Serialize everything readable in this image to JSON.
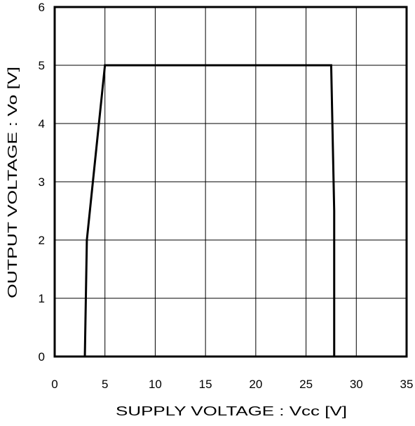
{
  "chart_data": {
    "type": "line",
    "xlabel": "SUPPLY VOLTAGE  : Vcc [V]",
    "ylabel": "OUTPUT VOLTAGE  : Vo [V]",
    "xlim": [
      0,
      35
    ],
    "ylim": [
      0,
      6
    ],
    "x_ticks": [
      "0",
      "5",
      "10",
      "15",
      "20",
      "25",
      "30",
      "35"
    ],
    "y_ticks": [
      "0",
      "1",
      "2",
      "3",
      "4",
      "5",
      "6"
    ],
    "grid": true,
    "legend": "none",
    "series": [
      {
        "x": [
          3.0,
          3.2,
          5.0,
          27.5,
          27.8,
          27.8
        ],
        "y": [
          0,
          2.0,
          5.0,
          5.0,
          2.5,
          0
        ],
        "color": "#000000"
      }
    ]
  }
}
